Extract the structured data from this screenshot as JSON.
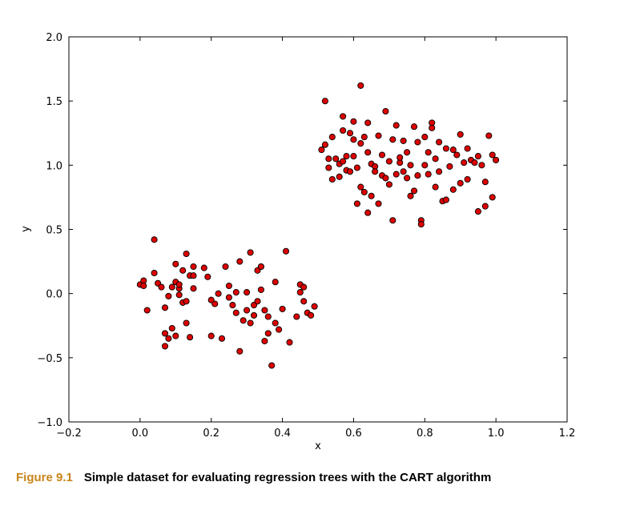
{
  "caption": {
    "figure_number": "Figure 9.1",
    "text": "Simple dataset for evaluating regression trees with the CART algorithm"
  },
  "colors": {
    "point_fill": "#dd0000",
    "point_edge": "#000000",
    "caption_accent": "#c8841a"
  },
  "chart_data": {
    "type": "scatter",
    "title": "",
    "xlabel": "x",
    "ylabel": "y",
    "xlim": [
      -0.2,
      1.2
    ],
    "ylim": [
      -1.0,
      2.0
    ],
    "xticks": [
      "-0.2",
      "0.0",
      "0.2",
      "0.4",
      "0.6",
      "0.8",
      "1.0",
      "1.2"
    ],
    "yticks": [
      "-1.0",
      "-0.5",
      "0.0",
      "0.5",
      "1.0",
      "1.5",
      "2.0"
    ],
    "grid": false,
    "points": [
      [
        0.0,
        0.07
      ],
      [
        0.01,
        0.1
      ],
      [
        0.01,
        0.06
      ],
      [
        0.02,
        -0.13
      ],
      [
        0.04,
        0.42
      ],
      [
        0.04,
        0.16
      ],
      [
        0.05,
        0.08
      ],
      [
        0.06,
        0.05
      ],
      [
        0.07,
        -0.31
      ],
      [
        0.07,
        -0.41
      ],
      [
        0.07,
        -0.11
      ],
      [
        0.08,
        -0.35
      ],
      [
        0.08,
        -0.02
      ],
      [
        0.09,
        -0.27
      ],
      [
        0.09,
        0.05
      ],
      [
        0.1,
        0.23
      ],
      [
        0.1,
        0.09
      ],
      [
        0.1,
        -0.33
      ],
      [
        0.11,
        0.04
      ],
      [
        0.11,
        0.07
      ],
      [
        0.11,
        -0.01
      ],
      [
        0.12,
        0.18
      ],
      [
        0.12,
        -0.07
      ],
      [
        0.13,
        0.31
      ],
      [
        0.13,
        -0.06
      ],
      [
        0.13,
        -0.23
      ],
      [
        0.14,
        0.14
      ],
      [
        0.14,
        -0.34
      ],
      [
        0.15,
        0.21
      ],
      [
        0.15,
        0.14
      ],
      [
        0.15,
        0.04
      ],
      [
        0.18,
        0.2
      ],
      [
        0.19,
        0.13
      ],
      [
        0.2,
        -0.05
      ],
      [
        0.2,
        -0.33
      ],
      [
        0.21,
        -0.08
      ],
      [
        0.22,
        0.0
      ],
      [
        0.23,
        -0.35
      ],
      [
        0.24,
        0.21
      ],
      [
        0.25,
        -0.03
      ],
      [
        0.25,
        0.06
      ],
      [
        0.26,
        -0.09
      ],
      [
        0.27,
        0.01
      ],
      [
        0.27,
        -0.15
      ],
      [
        0.28,
        0.25
      ],
      [
        0.28,
        -0.45
      ],
      [
        0.29,
        -0.21
      ],
      [
        0.3,
        0.01
      ],
      [
        0.3,
        -0.13
      ],
      [
        0.31,
        0.32
      ],
      [
        0.31,
        -0.23
      ],
      [
        0.32,
        -0.09
      ],
      [
        0.32,
        -0.17
      ],
      [
        0.33,
        -0.06
      ],
      [
        0.33,
        0.18
      ],
      [
        0.34,
        0.21
      ],
      [
        0.34,
        0.21
      ],
      [
        0.34,
        0.03
      ],
      [
        0.35,
        -0.37
      ],
      [
        0.35,
        -0.13
      ],
      [
        0.36,
        -0.18
      ],
      [
        0.36,
        -0.31
      ],
      [
        0.37,
        -0.56
      ],
      [
        0.38,
        -0.23
      ],
      [
        0.38,
        0.09
      ],
      [
        0.39,
        -0.28
      ],
      [
        0.4,
        -0.12
      ],
      [
        0.41,
        0.33
      ],
      [
        0.42,
        -0.38
      ],
      [
        0.44,
        -0.18
      ],
      [
        0.45,
        0.01
      ],
      [
        0.45,
        0.07
      ],
      [
        0.46,
        0.05
      ],
      [
        0.46,
        -0.06
      ],
      [
        0.47,
        -0.15
      ],
      [
        0.48,
        -0.17
      ],
      [
        0.49,
        -0.1
      ],
      [
        0.51,
        1.12
      ],
      [
        0.52,
        1.16
      ],
      [
        0.52,
        1.5
      ],
      [
        0.53,
        1.05
      ],
      [
        0.53,
        0.98
      ],
      [
        0.54,
        0.89
      ],
      [
        0.54,
        1.22
      ],
      [
        0.55,
        1.05
      ],
      [
        0.56,
        0.91
      ],
      [
        0.56,
        1.01
      ],
      [
        0.57,
        1.38
      ],
      [
        0.57,
        1.27
      ],
      [
        0.57,
        1.03
      ],
      [
        0.58,
        1.07
      ],
      [
        0.58,
        0.96
      ],
      [
        0.59,
        0.95
      ],
      [
        0.59,
        1.25
      ],
      [
        0.6,
        1.2
      ],
      [
        0.6,
        1.34
      ],
      [
        0.6,
        1.07
      ],
      [
        0.61,
        0.7
      ],
      [
        0.61,
        0.98
      ],
      [
        0.62,
        1.17
      ],
      [
        0.62,
        0.83
      ],
      [
        0.62,
        1.62
      ],
      [
        0.63,
        0.79
      ],
      [
        0.63,
        1.22
      ],
      [
        0.64,
        0.63
      ],
      [
        0.64,
        1.33
      ],
      [
        0.64,
        1.1
      ],
      [
        0.65,
        1.01
      ],
      [
        0.65,
        0.76
      ],
      [
        0.66,
        0.99
      ],
      [
        0.66,
        0.95
      ],
      [
        0.67,
        1.23
      ],
      [
        0.67,
        0.7
      ],
      [
        0.68,
        1.08
      ],
      [
        0.68,
        0.92
      ],
      [
        0.69,
        1.42
      ],
      [
        0.69,
        0.9
      ],
      [
        0.7,
        0.85
      ],
      [
        0.7,
        1.03
      ],
      [
        0.71,
        1.2
      ],
      [
        0.71,
        0.57
      ],
      [
        0.72,
        0.93
      ],
      [
        0.72,
        1.31
      ],
      [
        0.73,
        1.02
      ],
      [
        0.73,
        1.06
      ],
      [
        0.74,
        0.95
      ],
      [
        0.74,
        1.19
      ],
      [
        0.75,
        0.9
      ],
      [
        0.75,
        1.1
      ],
      [
        0.76,
        0.76
      ],
      [
        0.76,
        1.0
      ],
      [
        0.77,
        1.3
      ],
      [
        0.77,
        0.8
      ],
      [
        0.78,
        1.18
      ],
      [
        0.78,
        0.92
      ],
      [
        0.79,
        0.57
      ],
      [
        0.79,
        0.54
      ],
      [
        0.8,
        1.0
      ],
      [
        0.8,
        1.22
      ],
      [
        0.81,
        0.93
      ],
      [
        0.81,
        1.1
      ],
      [
        0.82,
        1.33
      ],
      [
        0.82,
        1.29
      ],
      [
        0.83,
        0.83
      ],
      [
        0.83,
        1.05
      ],
      [
        0.84,
        1.18
      ],
      [
        0.84,
        0.95
      ],
      [
        0.85,
        0.72
      ],
      [
        0.86,
        1.13
      ],
      [
        0.86,
        0.73
      ],
      [
        0.87,
        0.99
      ],
      [
        0.88,
        1.12
      ],
      [
        0.88,
        0.81
      ],
      [
        0.89,
        1.08
      ],
      [
        0.9,
        1.24
      ],
      [
        0.9,
        0.86
      ],
      [
        0.91,
        1.02
      ],
      [
        0.92,
        1.13
      ],
      [
        0.92,
        0.89
      ],
      [
        0.93,
        1.04
      ],
      [
        0.94,
        1.02
      ],
      [
        0.95,
        0.64
      ],
      [
        0.95,
        1.07
      ],
      [
        0.96,
        1.0
      ],
      [
        0.97,
        0.87
      ],
      [
        0.97,
        0.68
      ],
      [
        0.98,
        1.23
      ],
      [
        0.99,
        1.08
      ],
      [
        0.99,
        0.75
      ],
      [
        1.0,
        1.04
      ]
    ]
  }
}
